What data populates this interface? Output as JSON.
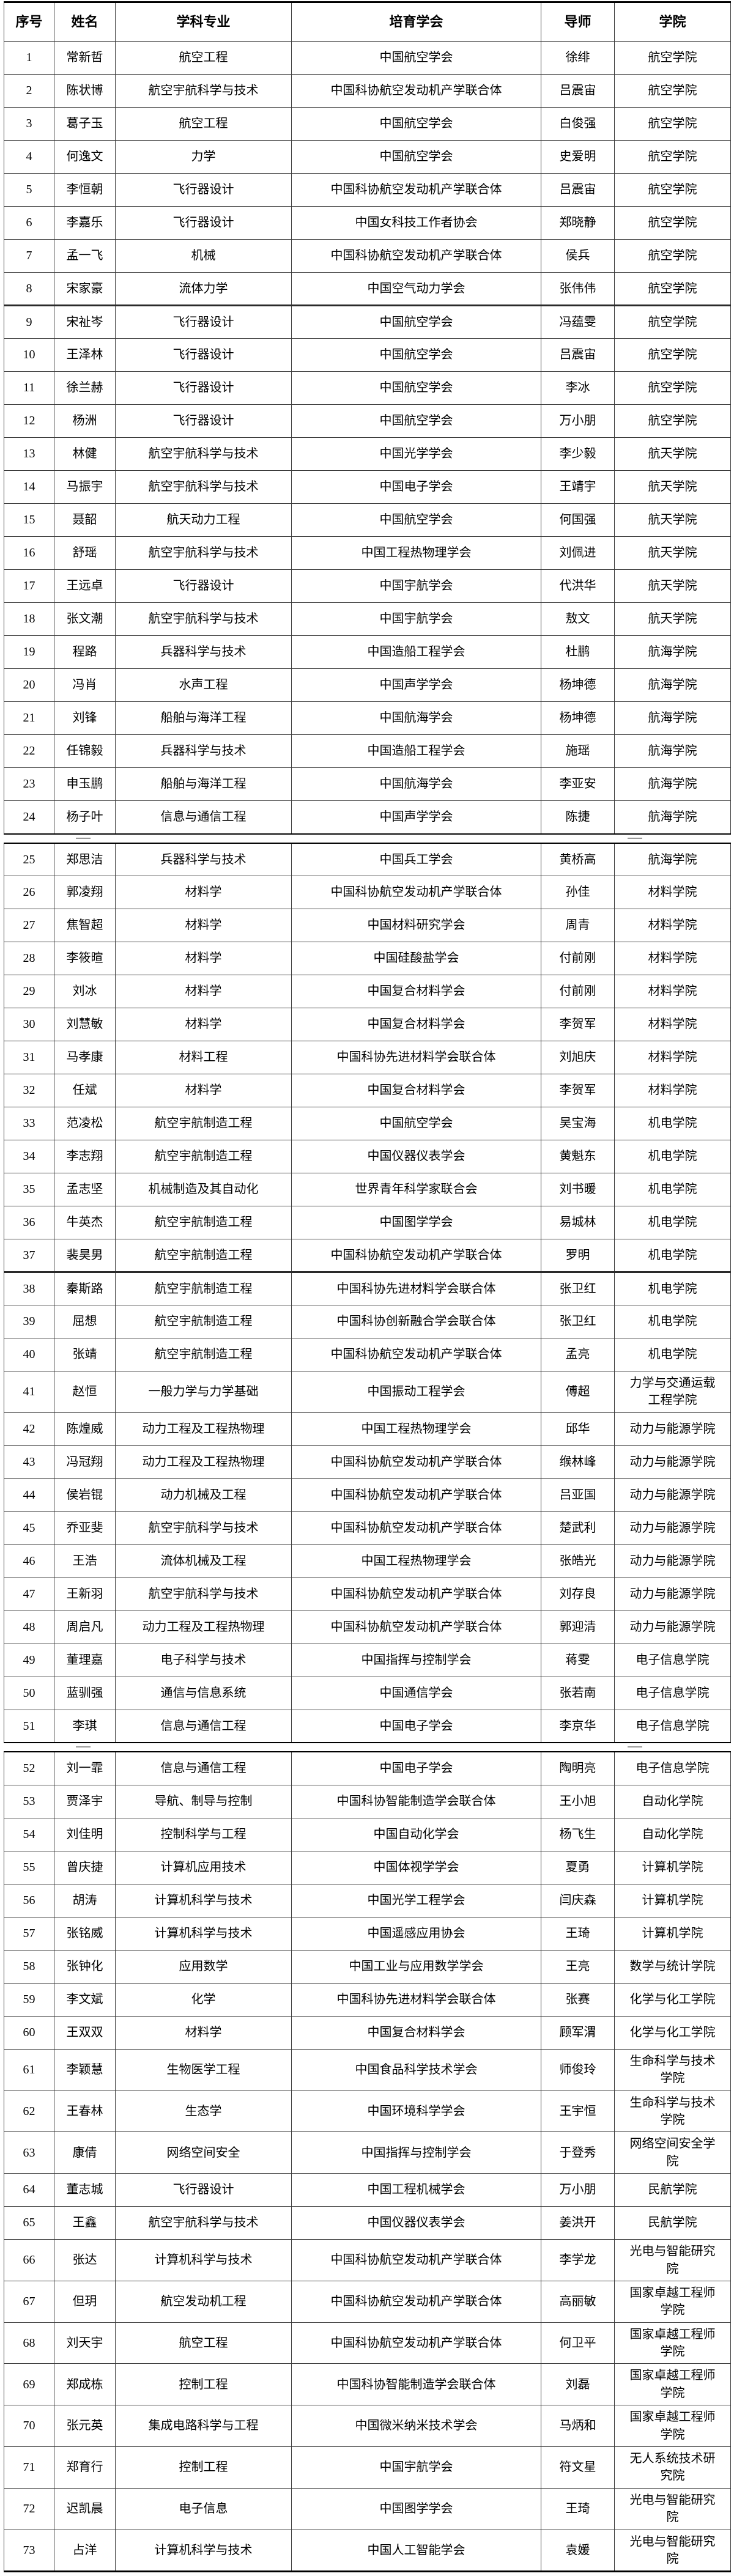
{
  "colors": {
    "border": "#3b3b3b",
    "heavy_border": "#000000",
    "text": "#000000",
    "background": "#ffffff"
  },
  "table": {
    "columns": [
      "序号",
      "姓名",
      "学科专业",
      "培育学会",
      "导师",
      "学院"
    ],
    "page_breaks_after_row": [
      24,
      51
    ],
    "heavy_divider_after_row": [
      8,
      37
    ],
    "rows": [
      [
        "1",
        "常新哲",
        "航空工程",
        "中国航空学会",
        "徐绯",
        "航空学院"
      ],
      [
        "2",
        "陈状博",
        "航空宇航科学与技术",
        "中国科协航空发动机产学联合体",
        "吕震宙",
        "航空学院"
      ],
      [
        "3",
        "葛子玉",
        "航空工程",
        "中国航空学会",
        "白俊强",
        "航空学院"
      ],
      [
        "4",
        "何逸文",
        "力学",
        "中国航空学会",
        "史爱明",
        "航空学院"
      ],
      [
        "5",
        "李恒朝",
        "飞行器设计",
        "中国科协航空发动机产学联合体",
        "吕震宙",
        "航空学院"
      ],
      [
        "6",
        "李嘉乐",
        "飞行器设计",
        "中国女科技工作者协会",
        "郑晓静",
        "航空学院"
      ],
      [
        "7",
        "孟一飞",
        "机械",
        "中国科协航空发动机产学联合体",
        "侯兵",
        "航空学院"
      ],
      [
        "8",
        "宋家豪",
        "流体力学",
        "中国空气动力学会",
        "张伟伟",
        "航空学院"
      ],
      [
        "9",
        "宋祉岑",
        "飞行器设计",
        "中国航空学会",
        "冯蕴雯",
        "航空学院"
      ],
      [
        "10",
        "王泽林",
        "飞行器设计",
        "中国航空学会",
        "吕震宙",
        "航空学院"
      ],
      [
        "11",
        "徐兰赫",
        "飞行器设计",
        "中国航空学会",
        "李冰",
        "航空学院"
      ],
      [
        "12",
        "杨洲",
        "飞行器设计",
        "中国航空学会",
        "万小朋",
        "航空学院"
      ],
      [
        "13",
        "林健",
        "航空宇航科学与技术",
        "中国光学学会",
        "李少毅",
        "航天学院"
      ],
      [
        "14",
        "马振宇",
        "航空宇航科学与技术",
        "中国电子学会",
        "王靖宇",
        "航天学院"
      ],
      [
        "15",
        "聂韶",
        "航天动力工程",
        "中国航空学会",
        "何国强",
        "航天学院"
      ],
      [
        "16",
        "舒瑶",
        "航空宇航科学与技术",
        "中国工程热物理学会",
        "刘佩进",
        "航天学院"
      ],
      [
        "17",
        "王远卓",
        "飞行器设计",
        "中国宇航学会",
        "代洪华",
        "航天学院"
      ],
      [
        "18",
        "张文潮",
        "航空宇航科学与技术",
        "中国宇航学会",
        "敖文",
        "航天学院"
      ],
      [
        "19",
        "程路",
        "兵器科学与技术",
        "中国造船工程学会",
        "杜鹏",
        "航海学院"
      ],
      [
        "20",
        "冯肖",
        "水声工程",
        "中国声学学会",
        "杨坤德",
        "航海学院"
      ],
      [
        "21",
        "刘锋",
        "船舶与海洋工程",
        "中国航海学会",
        "杨坤德",
        "航海学院"
      ],
      [
        "22",
        "任锦毅",
        "兵器科学与技术",
        "中国造船工程学会",
        "施瑶",
        "航海学院"
      ],
      [
        "23",
        "申玉鹏",
        "船舶与海洋工程",
        "中国航海学会",
        "李亚安",
        "航海学院"
      ],
      [
        "24",
        "杨子叶",
        "信息与通信工程",
        "中国声学学会",
        "陈捷",
        "航海学院"
      ],
      [
        "25",
        "郑思洁",
        "兵器科学与技术",
        "中国兵工学会",
        "黄桥高",
        "航海学院"
      ],
      [
        "26",
        "郭凌翔",
        "材料学",
        "中国科协航空发动机产学联合体",
        "孙佳",
        "材料学院"
      ],
      [
        "27",
        "焦智超",
        "材料学",
        "中国材料研究学会",
        "周青",
        "材料学院"
      ],
      [
        "28",
        "李筱暄",
        "材料学",
        "中国硅酸盐学会",
        "付前刚",
        "材料学院"
      ],
      [
        "29",
        "刘冰",
        "材料学",
        "中国复合材料学会",
        "付前刚",
        "材料学院"
      ],
      [
        "30",
        "刘慧敏",
        "材料学",
        "中国复合材料学会",
        "李贺军",
        "材料学院"
      ],
      [
        "31",
        "马孝康",
        "材料工程",
        "中国科协先进材料学会联合体",
        "刘旭庆",
        "材料学院"
      ],
      [
        "32",
        "任斌",
        "材料学",
        "中国复合材料学会",
        "李贺军",
        "材料学院"
      ],
      [
        "33",
        "范凌松",
        "航空宇航制造工程",
        "中国航空学会",
        "吴宝海",
        "机电学院"
      ],
      [
        "34",
        "李志翔",
        "航空宇航制造工程",
        "中国仪器仪表学会",
        "黄魁东",
        "机电学院"
      ],
      [
        "35",
        "孟志坚",
        "机械制造及其自动化",
        "世界青年科学家联合会",
        "刘书暖",
        "机电学院"
      ],
      [
        "36",
        "牛英杰",
        "航空宇航制造工程",
        "中国图学学会",
        "易城林",
        "机电学院"
      ],
      [
        "37",
        "裴昊男",
        "航空宇航制造工程",
        "中国科协航空发动机产学联合体",
        "罗明",
        "机电学院"
      ],
      [
        "38",
        "秦斯路",
        "航空宇航制造工程",
        "中国科协先进材料学会联合体",
        "张卫红",
        "机电学院"
      ],
      [
        "39",
        "屈想",
        "航空宇航制造工程",
        "中国科协创新融合学会联合体",
        "张卫红",
        "机电学院"
      ],
      [
        "40",
        "张靖",
        "航空宇航制造工程",
        "中国科协航空发动机产学联合体",
        "孟亮",
        "机电学院"
      ],
      [
        "41",
        "赵恒",
        "一般力学与力学基础",
        "中国振动工程学会",
        "傅超",
        "力学与交通运载工程学院"
      ],
      [
        "42",
        "陈煌威",
        "动力工程及工程热物理",
        "中国工程热物理学会",
        "邱华",
        "动力与能源学院"
      ],
      [
        "43",
        "冯冠翔",
        "动力工程及工程热物理",
        "中国科协航空发动机产学联合体",
        "缑林峰",
        "动力与能源学院"
      ],
      [
        "44",
        "侯岩锟",
        "动力机械及工程",
        "中国科协航空发动机产学联合体",
        "吕亚国",
        "动力与能源学院"
      ],
      [
        "45",
        "乔亚斐",
        "航空宇航科学与技术",
        "中国科协航空发动机产学联合体",
        "楚武利",
        "动力与能源学院"
      ],
      [
        "46",
        "王浩",
        "流体机械及工程",
        "中国工程热物理学会",
        "张皓光",
        "动力与能源学院"
      ],
      [
        "47",
        "王新羽",
        "航空宇航科学与技术",
        "中国科协航空发动机产学联合体",
        "刘存良",
        "动力与能源学院"
      ],
      [
        "48",
        "周启凡",
        "动力工程及工程热物理",
        "中国科协航空发动机产学联合体",
        "郭迎清",
        "动力与能源学院"
      ],
      [
        "49",
        "董理嘉",
        "电子科学与技术",
        "中国指挥与控制学会",
        "蒋雯",
        "电子信息学院"
      ],
      [
        "50",
        "蓝驯强",
        "通信与信息系统",
        "中国通信学会",
        "张若南",
        "电子信息学院"
      ],
      [
        "51",
        "李琪",
        "信息与通信工程",
        "中国电子学会",
        "李京华",
        "电子信息学院"
      ],
      [
        "52",
        "刘一霏",
        "信息与通信工程",
        "中国电子学会",
        "陶明亮",
        "电子信息学院"
      ],
      [
        "53",
        "贾泽宇",
        "导航、制导与控制",
        "中国科协智能制造学会联合体",
        "王小旭",
        "自动化学院"
      ],
      [
        "54",
        "刘佳明",
        "控制科学与工程",
        "中国自动化学会",
        "杨飞生",
        "自动化学院"
      ],
      [
        "55",
        "曾庆捷",
        "计算机应用技术",
        "中国体视学学会",
        "夏勇",
        "计算机学院"
      ],
      [
        "56",
        "胡涛",
        "计算机科学与技术",
        "中国光学工程学会",
        "闫庆森",
        "计算机学院"
      ],
      [
        "57",
        "张铭威",
        "计算机科学与技术",
        "中国遥感应用协会",
        "王琦",
        "计算机学院"
      ],
      [
        "58",
        "张钟化",
        "应用数学",
        "中国工业与应用数学学会",
        "王亮",
        "数学与统计学院"
      ],
      [
        "59",
        "李文斌",
        "化学",
        "中国科协先进材料学会联合体",
        "张赛",
        "化学与化工学院"
      ],
      [
        "60",
        "王双双",
        "材料学",
        "中国复合材料学会",
        "顾军渭",
        "化学与化工学院"
      ],
      [
        "61",
        "李颖慧",
        "生物医学工程",
        "中国食品科学技术学会",
        "师俊玲",
        "生命科学与技术学院"
      ],
      [
        "62",
        "王春林",
        "生态学",
        "中国环境科学学会",
        "王宇恒",
        "生命科学与技术学院"
      ],
      [
        "63",
        "康倩",
        "网络空间安全",
        "中国指挥与控制学会",
        "于登秀",
        "网络空间安全学院"
      ],
      [
        "64",
        "董志城",
        "飞行器设计",
        "中国工程机械学会",
        "万小朋",
        "民航学院"
      ],
      [
        "65",
        "王鑫",
        "航空宇航科学与技术",
        "中国仪器仪表学会",
        "姜洪开",
        "民航学院"
      ],
      [
        "66",
        "张达",
        "计算机科学与技术",
        "中国科协航空发动机产学联合体",
        "李学龙",
        "光电与智能研究院"
      ],
      [
        "67",
        "但玥",
        "航空发动机工程",
        "中国科协航空发动机产学联合体",
        "高丽敏",
        "国家卓越工程师学院"
      ],
      [
        "68",
        "刘天宇",
        "航空工程",
        "中国科协航空发动机产学联合体",
        "何卫平",
        "国家卓越工程师学院"
      ],
      [
        "69",
        "郑成栋",
        "控制工程",
        "中国科协智能制造学会联合体",
        "刘磊",
        "国家卓越工程师学院"
      ],
      [
        "70",
        "张元英",
        "集成电路科学与工程",
        "中国微米纳米技术学会",
        "马炳和",
        "国家卓越工程师学院"
      ],
      [
        "71",
        "郑育行",
        "控制工程",
        "中国宇航学会",
        "符文星",
        "无人系统技术研究院"
      ],
      [
        "72",
        "迟凯晨",
        "电子信息",
        "中国图学学会",
        "王琦",
        "光电与智能研究院"
      ],
      [
        "73",
        "占洋",
        "计算机科学与技术",
        "中国人工智能学会",
        "袁媛",
        "光电与智能研究院"
      ]
    ]
  }
}
